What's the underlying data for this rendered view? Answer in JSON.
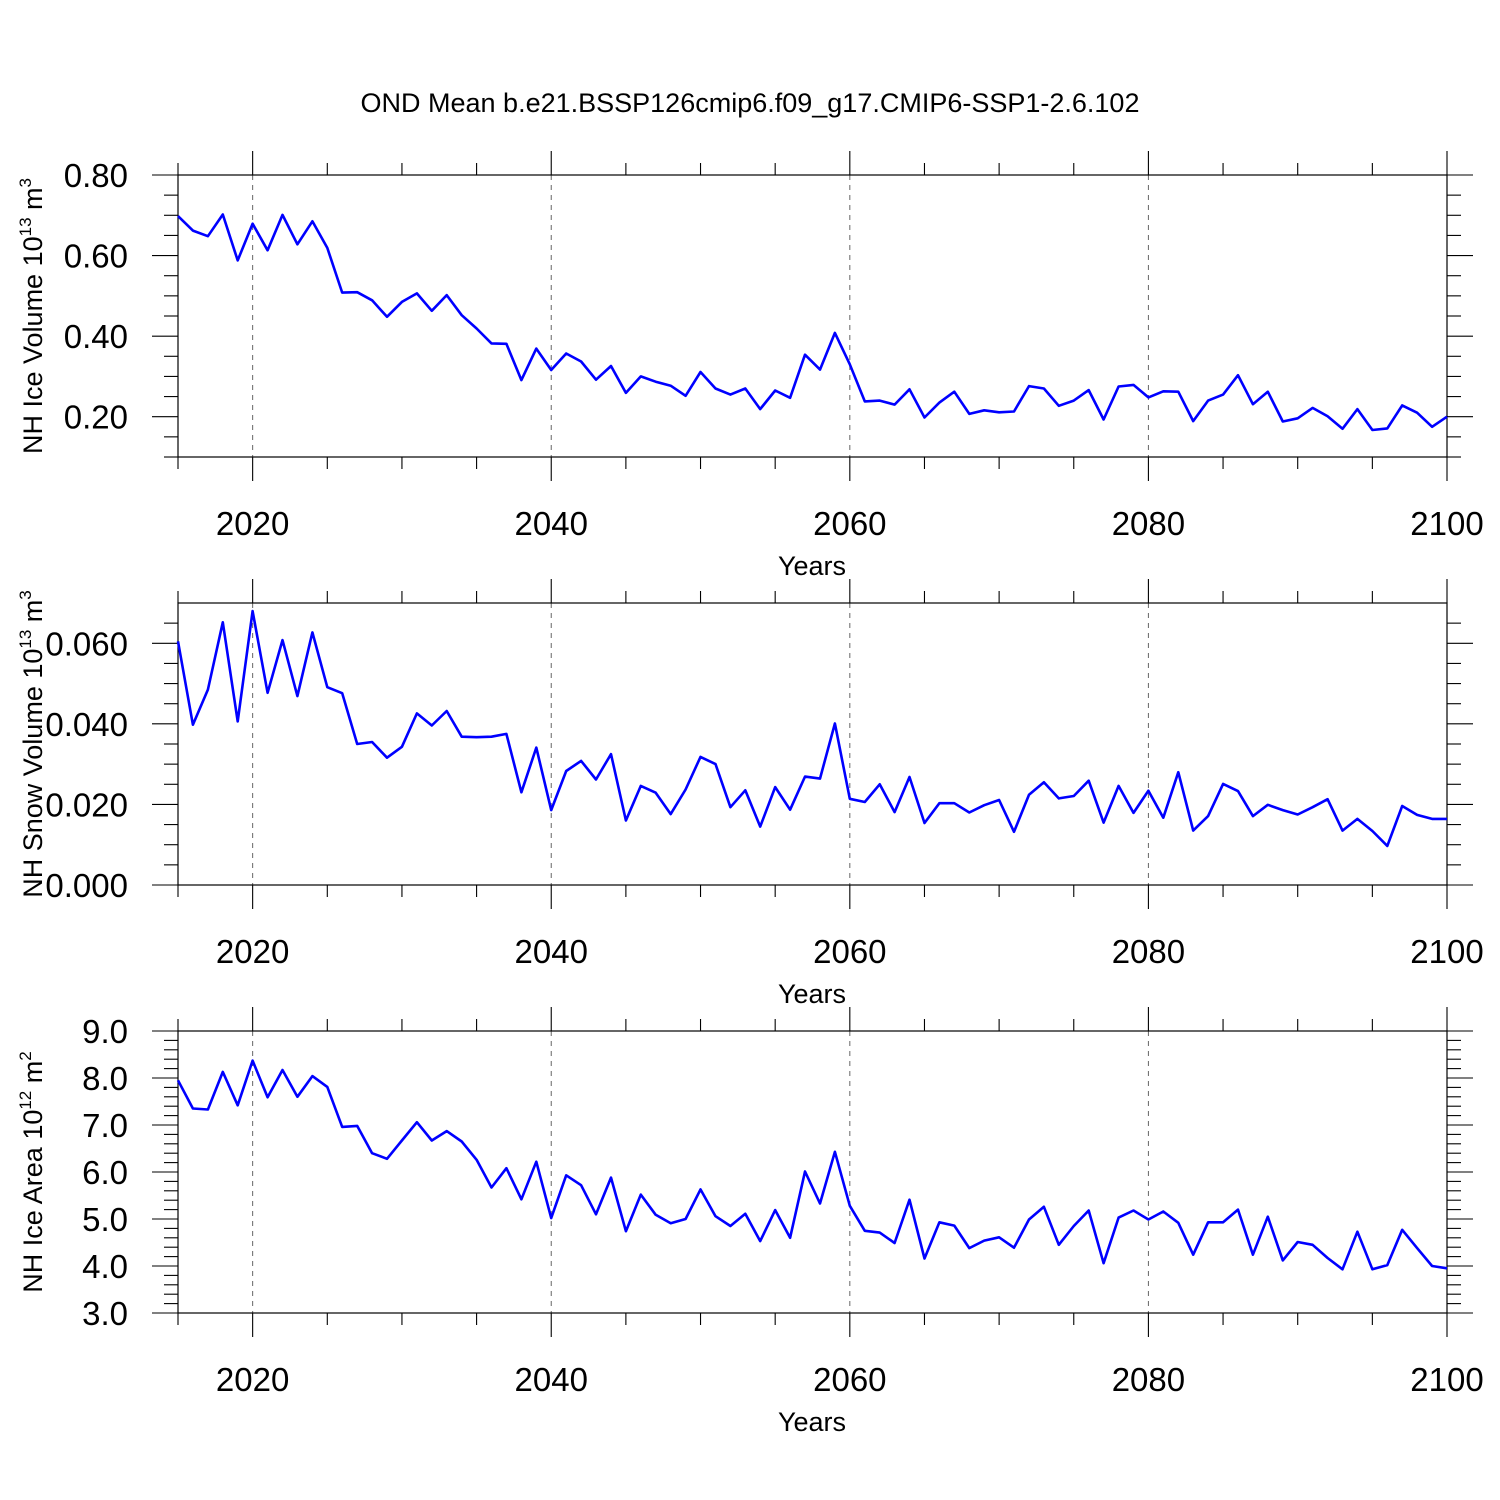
{
  "title": "OND Mean b.e21.BSSP126cmip6.f09_g17.CMIP6-SSP1-2.6.102",
  "line_color": "#0000ff",
  "chart_data": [
    {
      "type": "line",
      "title": "OND Mean b.e21.BSSP126cmip6.f09_g17.CMIP6-SSP1-2.6.102",
      "xlabel": "Years",
      "ylabel": {
        "text": "NH Ice Volume 10",
        "sup": "13",
        "unit": " m",
        "unit_sup": "3"
      },
      "xlim": [
        2015,
        2100
      ],
      "ylim": [
        0.1,
        0.8
      ],
      "xticks": [
        "2020",
        "2040",
        "2060",
        "2080",
        "2100"
      ],
      "yticks": [
        {
          "value": 0.2,
          "label": "0.20"
        },
        {
          "value": 0.4,
          "label": "0.40"
        },
        {
          "value": 0.6,
          "label": "0.60"
        },
        {
          "value": 0.8,
          "label": "0.80"
        }
      ],
      "grid": "dashed vertical at major x ticks",
      "series": [
        {
          "name": "NH Ice Volume",
          "x_start": 2015,
          "values": [
            0.698,
            0.662,
            0.648,
            0.702,
            0.588,
            0.679,
            0.613,
            0.701,
            0.628,
            0.685,
            0.619,
            0.508,
            0.509,
            0.489,
            0.448,
            0.485,
            0.506,
            0.463,
            0.502,
            0.452,
            0.419,
            0.382,
            0.381,
            0.291,
            0.369,
            0.316,
            0.357,
            0.337,
            0.292,
            0.326,
            0.259,
            0.3,
            0.287,
            0.277,
            0.252,
            0.311,
            0.27,
            0.255,
            0.27,
            0.219,
            0.265,
            0.247,
            0.354,
            0.317,
            0.408,
            0.33,
            0.238,
            0.24,
            0.23,
            0.268,
            0.198,
            0.235,
            0.262,
            0.207,
            0.216,
            0.211,
            0.213,
            0.276,
            0.27,
            0.227,
            0.24,
            0.266,
            0.193,
            0.275,
            0.279,
            0.248,
            0.263,
            0.262,
            0.189,
            0.24,
            0.255,
            0.303,
            0.231,
            0.262,
            0.188,
            0.196,
            0.222,
            0.201,
            0.17,
            0.219,
            0.167,
            0.171,
            0.228,
            0.21,
            0.175,
            0.2
          ]
        }
      ]
    },
    {
      "type": "line",
      "xlabel": "Years",
      "ylabel": {
        "text": "NH Snow Volume 10",
        "sup": "13",
        "unit": " m",
        "unit_sup": "3"
      },
      "xlim": [
        2015,
        2100
      ],
      "ylim": [
        0.0,
        0.07
      ],
      "xticks": [
        "2020",
        "2040",
        "2060",
        "2080",
        "2100"
      ],
      "yticks": [
        {
          "value": 0.0,
          "label": "0.000"
        },
        {
          "value": 0.02,
          "label": "0.020"
        },
        {
          "value": 0.04,
          "label": "0.040"
        },
        {
          "value": 0.06,
          "label": "0.060"
        }
      ],
      "grid": "dashed vertical at major x ticks",
      "series": [
        {
          "name": "NH Snow Volume",
          "x_start": 2015,
          "values": [
            0.0605,
            0.0398,
            0.0485,
            0.0652,
            0.0406,
            0.068,
            0.0477,
            0.0608,
            0.0469,
            0.0627,
            0.0491,
            0.0476,
            0.035,
            0.0355,
            0.0316,
            0.0343,
            0.0426,
            0.0396,
            0.0432,
            0.0368,
            0.0367,
            0.0368,
            0.0375,
            0.023,
            0.0341,
            0.0186,
            0.0283,
            0.0308,
            0.0262,
            0.0325,
            0.016,
            0.0246,
            0.0229,
            0.0176,
            0.0237,
            0.0318,
            0.03,
            0.0193,
            0.0235,
            0.0145,
            0.0243,
            0.0187,
            0.0269,
            0.0264,
            0.0401,
            0.0214,
            0.0206,
            0.025,
            0.0181,
            0.0268,
            0.0154,
            0.0203,
            0.0203,
            0.018,
            0.0198,
            0.0211,
            0.0132,
            0.0224,
            0.0255,
            0.0215,
            0.0221,
            0.0259,
            0.0155,
            0.0246,
            0.0179,
            0.0234,
            0.0167,
            0.028,
            0.0135,
            0.0171,
            0.0251,
            0.0233,
            0.0171,
            0.0199,
            0.0186,
            0.0175,
            0.0193,
            0.0213,
            0.0135,
            0.0164,
            0.0134,
            0.0097,
            0.0196,
            0.0174,
            0.0164,
            0.0164
          ]
        }
      ]
    },
    {
      "type": "line",
      "xlabel": "Years",
      "ylabel": {
        "text": "NH Ice Area 10",
        "sup": "12",
        "unit": " m",
        "unit_sup": "2"
      },
      "xlim": [
        2015,
        2100
      ],
      "ylim": [
        3.0,
        9.0
      ],
      "xticks": [
        "2020",
        "2040",
        "2060",
        "2080",
        "2100"
      ],
      "yticks": [
        {
          "value": 3.0,
          "label": "3.0"
        },
        {
          "value": 4.0,
          "label": "4.0"
        },
        {
          "value": 5.0,
          "label": "5.0"
        },
        {
          "value": 6.0,
          "label": "6.0"
        },
        {
          "value": 7.0,
          "label": "7.0"
        },
        {
          "value": 8.0,
          "label": "8.0"
        },
        {
          "value": 9.0,
          "label": "9.0"
        }
      ],
      "grid": "dashed vertical at major x ticks",
      "series": [
        {
          "name": "NH Ice Area",
          "x_start": 2015,
          "values": [
            7.95,
            7.35,
            7.33,
            8.13,
            7.42,
            8.37,
            7.59,
            8.17,
            7.6,
            8.04,
            7.81,
            6.96,
            6.98,
            6.4,
            6.28,
            6.67,
            7.06,
            6.67,
            6.87,
            6.65,
            6.26,
            5.67,
            6.08,
            5.42,
            6.22,
            5.02,
            5.93,
            5.72,
            5.1,
            5.88,
            4.74,
            5.52,
            5.09,
            4.91,
            5.0,
            5.63,
            5.06,
            4.85,
            5.11,
            4.53,
            5.19,
            4.6,
            6.01,
            5.33,
            6.43,
            5.28,
            4.75,
            4.71,
            4.49,
            5.41,
            4.16,
            4.93,
            4.86,
            4.38,
            4.54,
            4.61,
            4.39,
            4.99,
            5.26,
            4.45,
            4.85,
            5.18,
            4.06,
            5.03,
            5.18,
            4.99,
            5.16,
            4.92,
            4.24,
            4.93,
            4.93,
            5.2,
            4.24,
            5.05,
            4.12,
            4.51,
            4.45,
            4.17,
            3.93,
            4.73,
            3.93,
            4.02,
            4.77,
            4.38,
            4.0,
            3.95
          ]
        }
      ]
    }
  ]
}
